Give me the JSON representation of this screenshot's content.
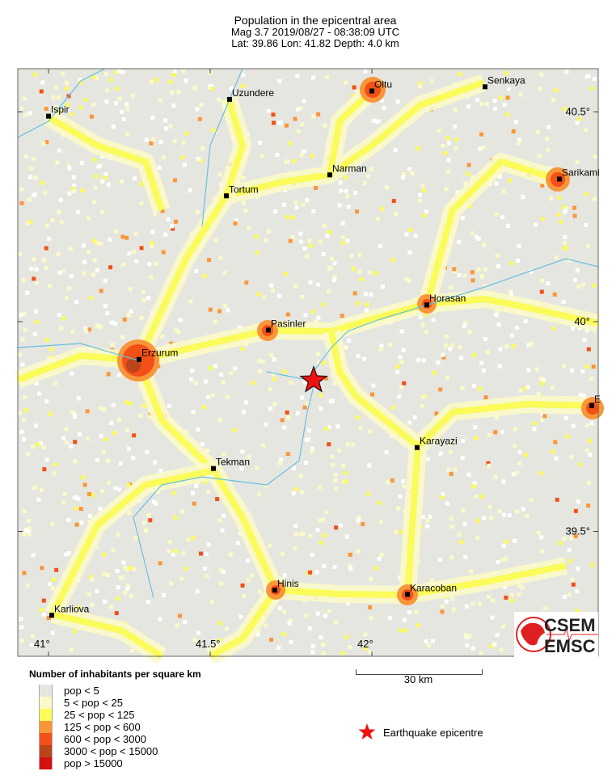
{
  "header": {
    "title": "Population in the epicentral area",
    "line2": "Mag 3.7  2019/08/27 - 08:38:09 UTC",
    "line3": "Lat: 39.86    Lon:  41.82     Depth:  4.0 km"
  },
  "map": {
    "lon_range": [
      40.9,
      42.7
    ],
    "lat_range": [
      39.0,
      40.6
    ],
    "epicentre": {
      "lat": 39.86,
      "lon": 41.82,
      "color": "#ee1111"
    },
    "lon_ticks": [
      {
        "v": 41,
        "label": "41°"
      },
      {
        "v": 41.5,
        "label": "41.5°"
      },
      {
        "v": 42,
        "label": "42°"
      }
    ],
    "lat_ticks": [
      {
        "v": 40.5,
        "label": "40.5°"
      },
      {
        "v": 40,
        "label": "40°"
      },
      {
        "v": 39.5,
        "label": "39.5°"
      }
    ],
    "cities": [
      {
        "name": "Ispir",
        "lat": 40.49,
        "lon": 41.0
      },
      {
        "name": "Uzundere",
        "lat": 40.53,
        "lon": 41.56
      },
      {
        "name": "Oltu",
        "lat": 40.55,
        "lon": 42.0
      },
      {
        "name": "Senkaya",
        "lat": 40.56,
        "lon": 42.35
      },
      {
        "name": "Tortum",
        "lat": 40.3,
        "lon": 41.55
      },
      {
        "name": "Narman",
        "lat": 40.35,
        "lon": 41.87
      },
      {
        "name": "Sarikami",
        "lat": 40.34,
        "lon": 42.58
      },
      {
        "name": "Horasan",
        "lat": 40.04,
        "lon": 42.17
      },
      {
        "name": "Pasinler",
        "lat": 39.98,
        "lon": 41.68
      },
      {
        "name": "Erzurum",
        "lat": 39.91,
        "lon": 41.28
      },
      {
        "name": "E",
        "lat": 39.8,
        "lon": 42.68
      },
      {
        "name": "Karayazi",
        "lat": 39.7,
        "lon": 42.14
      },
      {
        "name": "Tekman",
        "lat": 39.65,
        "lon": 41.51
      },
      {
        "name": "Hinis",
        "lat": 39.36,
        "lon": 41.7
      },
      {
        "name": "Karacoban",
        "lat": 39.35,
        "lon": 42.11
      },
      {
        "name": "Karliova",
        "lat": 39.3,
        "lon": 41.01
      }
    ]
  },
  "legend": {
    "title": "Number of inhabitants per square km",
    "items": [
      {
        "label": "pop < 5",
        "color": "#e6e6e0"
      },
      {
        "label": "5 < pop < 25",
        "color": "#fafac8"
      },
      {
        "label": "25 < pop < 125",
        "color": "#fbfb5a"
      },
      {
        "label": "125 < pop < 600",
        "color": "#f9963a"
      },
      {
        "label": "600 < pop < 3000",
        "color": "#f25018"
      },
      {
        "label": "3000 < pop < 15000",
        "color": "#b9461a"
      },
      {
        "label": "pop > 15000",
        "color": "#d41010"
      }
    ]
  },
  "scale_bar": {
    "label": "30 km"
  },
  "epicentre_legend": {
    "label": "Earthquake epicentre"
  },
  "logo": {
    "text_top": "CSEM",
    "text_bottom": "EMSC",
    "color": "#e02020"
  }
}
